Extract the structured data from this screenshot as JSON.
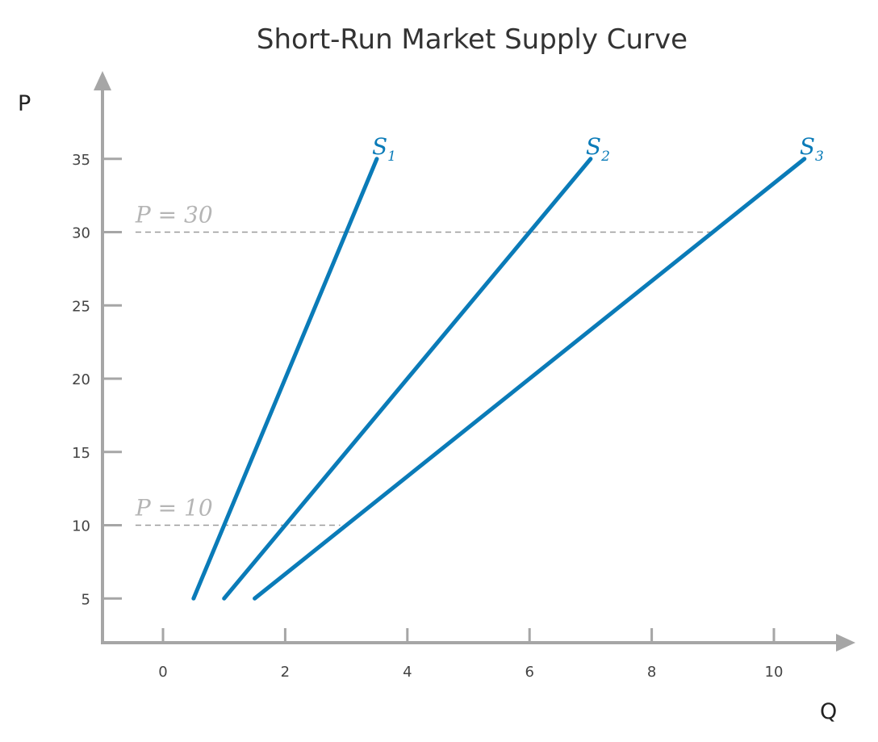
{
  "chart_data": {
    "type": "line",
    "title": "Short-Run Market Supply Curve",
    "xlabel": "Q",
    "ylabel": "P",
    "xlim": [
      -0.5,
      11
    ],
    "ylim": [
      2,
      39
    ],
    "xticks": [
      0,
      2,
      4,
      6,
      8,
      10
    ],
    "yticks": [
      5,
      10,
      15,
      20,
      25,
      30,
      35
    ],
    "grid": false,
    "series": [
      {
        "name": "S",
        "subscript": "1",
        "color": "#0a7bb8",
        "points": [
          [
            0.5,
            5
          ],
          [
            3.5,
            35
          ]
        ]
      },
      {
        "name": "S",
        "subscript": "2",
        "color": "#0a7bb8",
        "points": [
          [
            1.0,
            5
          ],
          [
            7.0,
            35
          ]
        ]
      },
      {
        "name": "S",
        "subscript": "3",
        "color": "#0a7bb8",
        "points": [
          [
            1.5,
            5
          ],
          [
            10.5,
            35
          ]
        ]
      }
    ],
    "reference_lines": [
      {
        "label": "P = 30",
        "y": 30,
        "x_start": -0.45,
        "x_end": 9.0
      },
      {
        "label": "P = 10",
        "y": 10,
        "x_start": -0.45,
        "x_end": 2.9
      }
    ],
    "colors": {
      "axis": "#a6a6a6",
      "reference": "#9a9a9a"
    }
  }
}
